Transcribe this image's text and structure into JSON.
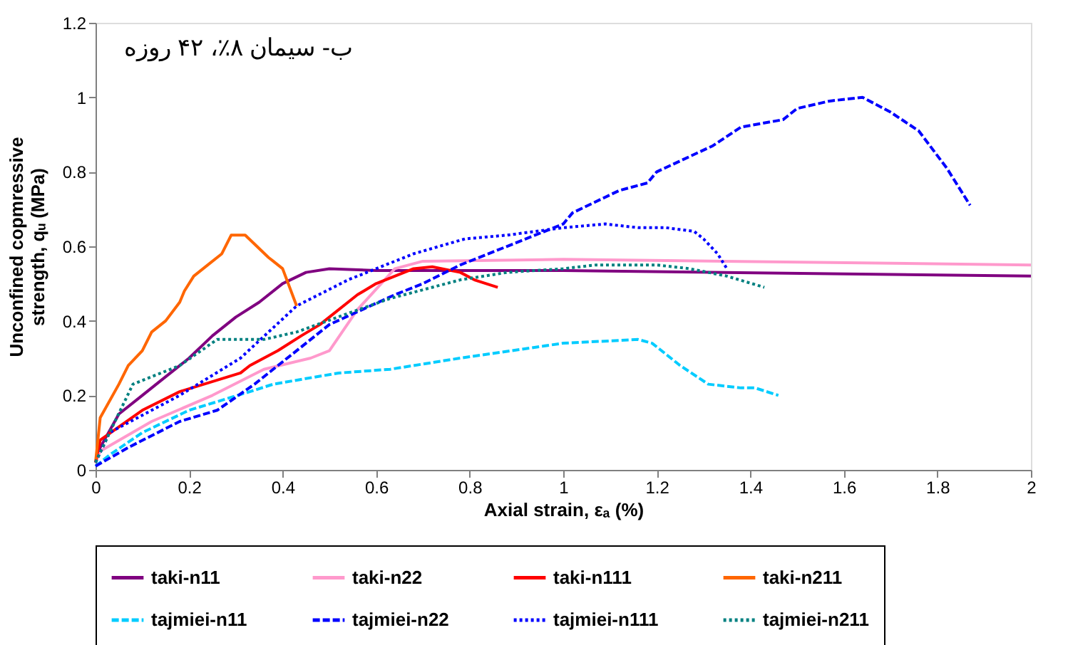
{
  "chart_data": {
    "type": "line",
    "annotations": [
      {
        "text": "ب- سیمان ۸٪، ۴۲ روزه"
      }
    ],
    "xlabel": "Axial strain, εₐ (%)",
    "ylabel": "Unconfined copmressive\nstrength, qᵤ (MPa)",
    "xlim": [
      0,
      2
    ],
    "xticks": [
      0,
      0.2,
      0.4,
      0.6,
      0.8,
      1,
      1.2,
      1.4,
      1.6,
      1.8,
      2
    ],
    "ylim": [
      0,
      1.2
    ],
    "yticks": [
      0,
      0.2,
      0.4,
      0.6,
      0.8,
      1,
      1.2
    ],
    "grid": false,
    "legend": "bottom",
    "marker": "none",
    "series": [
      {
        "name": "taki-n11",
        "color": "#800080",
        "line_style": "solid",
        "x": [
          0,
          0.01,
          0.05,
          0.1,
          0.15,
          0.2,
          0.25,
          0.3,
          0.35,
          0.4,
          0.45,
          0.5,
          0.6,
          1,
          2
        ],
        "values": [
          0.02,
          0.06,
          0.15,
          0.2,
          0.25,
          0.3,
          0.36,
          0.41,
          0.45,
          0.5,
          0.53,
          0.54,
          0.535,
          0.535,
          0.52
        ]
      },
      {
        "name": "taki-n22",
        "color": "#ff99cc",
        "line_style": "solid",
        "x": [
          0,
          0.01,
          0.12,
          0.25,
          0.36,
          0.46,
          0.5,
          0.56,
          0.64,
          0.7,
          1,
          2
        ],
        "values": [
          0.02,
          0.05,
          0.13,
          0.2,
          0.27,
          0.3,
          0.32,
          0.43,
          0.54,
          0.56,
          0.565,
          0.55
        ]
      },
      {
        "name": "taki-n111",
        "color": "#ff0000",
        "line_style": "solid",
        "x": [
          0,
          0.01,
          0.1,
          0.18,
          0.31,
          0.33,
          0.39,
          0.44,
          0.48,
          0.5,
          0.56,
          0.6,
          0.64,
          0.68,
          0.72,
          0.78,
          0.81,
          0.86
        ],
        "values": [
          0.02,
          0.08,
          0.16,
          0.21,
          0.26,
          0.28,
          0.32,
          0.36,
          0.39,
          0.41,
          0.47,
          0.5,
          0.52,
          0.54,
          0.545,
          0.53,
          0.51,
          0.49
        ]
      },
      {
        "name": "taki-n211",
        "color": "#ff6600",
        "line_style": "solid",
        "x": [
          0,
          0.01,
          0.05,
          0.07,
          0.1,
          0.12,
          0.15,
          0.18,
          0.19,
          0.21,
          0.24,
          0.27,
          0.29,
          0.32,
          0.37,
          0.38,
          0.4,
          0.43
        ],
        "values": [
          0.02,
          0.14,
          0.23,
          0.28,
          0.32,
          0.37,
          0.4,
          0.45,
          0.48,
          0.52,
          0.55,
          0.58,
          0.63,
          0.63,
          0.57,
          0.56,
          0.54,
          0.44
        ]
      },
      {
        "name": "tajmiei-n11",
        "color": "#00ccff",
        "line_style": "dashed",
        "x": [
          0,
          0.03,
          0.1,
          0.2,
          0.33,
          0.38,
          0.52,
          0.63,
          0.78,
          1.0,
          1.16,
          1.19,
          1.25,
          1.31,
          1.38,
          1.41,
          1.46
        ],
        "values": [
          0.01,
          0.04,
          0.1,
          0.16,
          0.21,
          0.23,
          0.26,
          0.27,
          0.3,
          0.34,
          0.35,
          0.34,
          0.28,
          0.23,
          0.22,
          0.22,
          0.2
        ]
      },
      {
        "name": "tajmiei-n22",
        "color": "#0000ff",
        "line_style": "dashed",
        "x": [
          0,
          0.07,
          0.18,
          0.26,
          0.34,
          0.4,
          0.5,
          0.64,
          0.7,
          0.78,
          1.0,
          1.02,
          1.12,
          1.18,
          1.2,
          1.32,
          1.38,
          1.47,
          1.5,
          1.57,
          1.64,
          1.7,
          1.76,
          1.82,
          1.87
        ],
        "values": [
          0.01,
          0.06,
          0.13,
          0.16,
          0.23,
          0.29,
          0.39,
          0.47,
          0.5,
          0.55,
          0.66,
          0.69,
          0.75,
          0.77,
          0.8,
          0.87,
          0.92,
          0.94,
          0.97,
          0.99,
          1.0,
          0.96,
          0.91,
          0.81,
          0.71
        ]
      },
      {
        "name": "tajmiei-n111",
        "color": "#0000ff",
        "line_style": "dotted",
        "x": [
          0,
          0.03,
          0.18,
          0.31,
          0.43,
          0.54,
          0.68,
          0.79,
          0.88,
          1.0,
          1.09,
          1.16,
          1.22,
          1.28,
          1.3,
          1.33,
          1.35
        ],
        "values": [
          0.02,
          0.1,
          0.2,
          0.3,
          0.44,
          0.51,
          0.58,
          0.62,
          0.63,
          0.65,
          0.66,
          0.65,
          0.65,
          0.64,
          0.62,
          0.58,
          0.54
        ]
      },
      {
        "name": "tajmiei-n211",
        "color": "#008080",
        "line_style": "dotted",
        "x": [
          0,
          0.03,
          0.08,
          0.18,
          0.26,
          0.3,
          0.36,
          0.43,
          0.54,
          0.63,
          0.78,
          0.88,
          1.0,
          1.07,
          1.2,
          1.27,
          1.35,
          1.43
        ],
        "values": [
          0.02,
          0.1,
          0.23,
          0.28,
          0.35,
          0.35,
          0.35,
          0.37,
          0.42,
          0.46,
          0.51,
          0.53,
          0.54,
          0.55,
          0.55,
          0.54,
          0.52,
          0.49
        ]
      }
    ]
  }
}
